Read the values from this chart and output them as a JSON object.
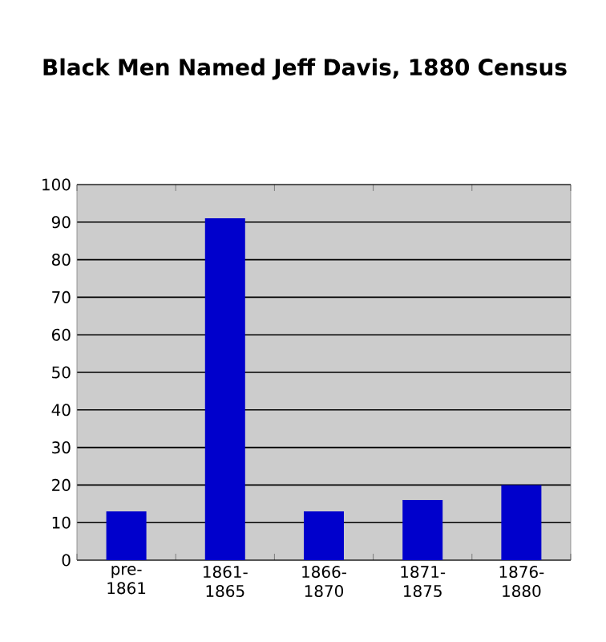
{
  "chart_data": {
    "type": "bar",
    "title": "Black Men Named Jeff Davis, 1880 Census",
    "categories": [
      "pre-1861",
      "1861-1865",
      "1866-1870",
      "1871-1875",
      "1876-1880"
    ],
    "values": [
      13,
      91,
      13,
      16,
      20
    ],
    "color": "#0000cc",
    "ylim": [
      0,
      100
    ],
    "yticks": [
      0,
      10,
      20,
      30,
      40,
      50,
      60,
      70,
      80,
      90,
      100
    ],
    "grid": "y"
  }
}
